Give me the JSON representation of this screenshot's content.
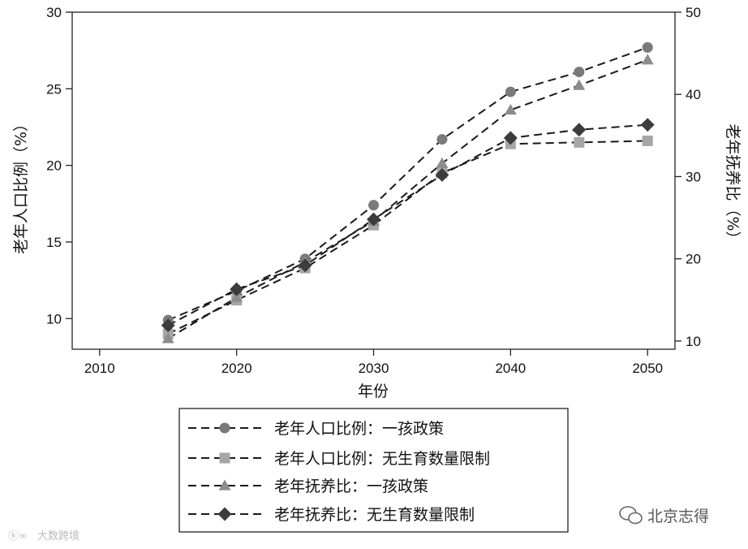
{
  "chart_data": {
    "type": "line",
    "xlabel": "年份",
    "ylabel_left": "老年人口比例（%）",
    "ylabel_right": "老年抚养比（%）",
    "xlim": [
      2008,
      2052
    ],
    "xticks": [
      2010,
      2020,
      2030,
      2040,
      2050
    ],
    "ylim_left": [
      8,
      30
    ],
    "yticks_left": [
      10,
      15,
      20,
      25,
      30
    ],
    "ylim_right": [
      9,
      50
    ],
    "yticks_right": [
      10,
      20,
      30,
      40,
      50
    ],
    "x": [
      2015,
      2020,
      2025,
      2030,
      2035,
      2040,
      2045,
      2050
    ],
    "series": [
      {
        "name": "老年人口比例：一孩政策",
        "axis": "left",
        "marker": "circle",
        "color": "#7a7a7a",
        "values": [
          9.9,
          11.8,
          13.9,
          17.4,
          21.7,
          24.8,
          26.1,
          27.7
        ]
      },
      {
        "name": "老年人口比例：无生育数量限制",
        "axis": "left",
        "marker": "square",
        "color": "#a6a6a6",
        "values": [
          9.0,
          11.2,
          13.3,
          16.1,
          19.5,
          21.4,
          21.5,
          21.6
        ]
      },
      {
        "name": "老年抚养比：一孩政策",
        "axis": "right",
        "marker": "triangle",
        "color": "#8c8c8c",
        "values": [
          10.3,
          15.3,
          19.6,
          24.6,
          31.6,
          38.1,
          41.1,
          44.2
        ]
      },
      {
        "name": "老年抚养比：无生育数量限制",
        "axis": "right",
        "marker": "diamond",
        "color": "#3c3c3c",
        "values": [
          11.9,
          16.3,
          19.2,
          24.8,
          30.2,
          34.7,
          35.7,
          36.3
        ]
      }
    ],
    "grid": false,
    "legend_position": "bottom"
  },
  "watermarks": {
    "bottom_left": "大数跨境",
    "bottom_right": "北京志得"
  }
}
